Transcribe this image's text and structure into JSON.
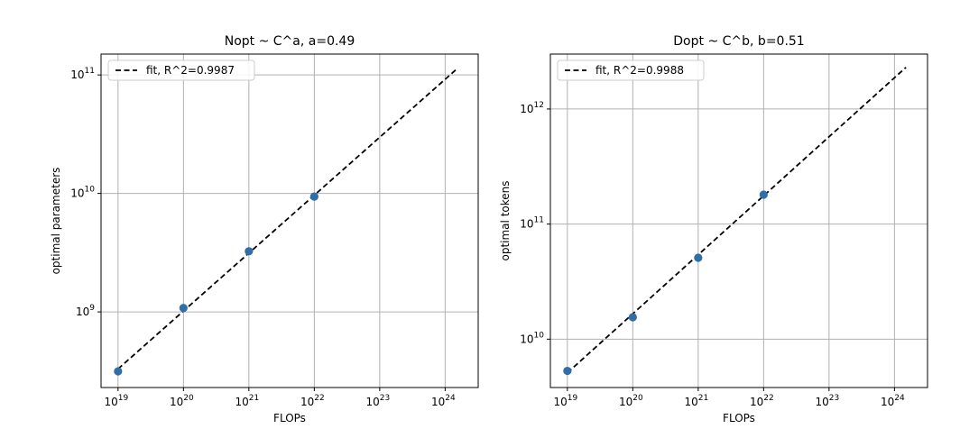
{
  "chart_data": [
    {
      "type": "scatter",
      "title": "Nopt ~ C^a, a=0.49",
      "xlabel": "FLOPs",
      "ylabel": "optimal parameters",
      "x_scale": "log",
      "y_scale": "log",
      "xlim": [
        5.5e+18,
        3.2e+24
      ],
      "ylim": [
        230000000.0,
        150000000000.0
      ],
      "x_ticks": [
        {
          "value": 1e+19,
          "mantissa": "10",
          "exp": "19"
        },
        {
          "value": 1e+20,
          "mantissa": "10",
          "exp": "20"
        },
        {
          "value": 1e+21,
          "mantissa": "10",
          "exp": "21"
        },
        {
          "value": 1e+22,
          "mantissa": "10",
          "exp": "22"
        },
        {
          "value": 1e+23,
          "mantissa": "10",
          "exp": "23"
        },
        {
          "value": 1e+24,
          "mantissa": "10",
          "exp": "24"
        }
      ],
      "y_ticks": [
        {
          "value": 1000000000.0,
          "mantissa": "10",
          "exp": "9"
        },
        {
          "value": 10000000000.0,
          "mantissa": "10",
          "exp": "10"
        },
        {
          "value": 100000000000.0,
          "mantissa": "10",
          "exp": "11"
        }
      ],
      "grid": true,
      "legend": {
        "position": "top-left",
        "entries": [
          "fit, R^2=0.9987"
        ]
      },
      "points": {
        "x": [
          1e+19,
          1e+20,
          1e+21,
          1e+22
        ],
        "y": [
          315000000.0,
          1080000000.0,
          3250000000.0,
          9400000000.0
        ]
      },
      "fit": {
        "x": [
          1e+19,
          1.5e+24
        ],
        "y": [
          330000000.0,
          112000000000.0
        ],
        "style": "dashed"
      },
      "colors": {
        "points": "#2f6ea6",
        "fit": "#000000",
        "grid": "#b0b0b0"
      }
    },
    {
      "type": "scatter",
      "title": "Dopt ~ C^b, b=0.51",
      "xlabel": "FLOPs",
      "ylabel": "optimal tokens",
      "x_scale": "log",
      "y_scale": "log",
      "xlim": [
        5.5e+18,
        3.2e+24
      ],
      "ylim": [
        3800000000.0,
        3000000000000.0
      ],
      "x_ticks": [
        {
          "value": 1e+19,
          "mantissa": "10",
          "exp": "19"
        },
        {
          "value": 1e+20,
          "mantissa": "10",
          "exp": "20"
        },
        {
          "value": 1e+21,
          "mantissa": "10",
          "exp": "21"
        },
        {
          "value": 1e+22,
          "mantissa": "10",
          "exp": "22"
        },
        {
          "value": 1e+23,
          "mantissa": "10",
          "exp": "23"
        },
        {
          "value": 1e+24,
          "mantissa": "10",
          "exp": "24"
        }
      ],
      "y_ticks": [
        {
          "value": 10000000000.0,
          "mantissa": "10",
          "exp": "10"
        },
        {
          "value": 100000000000.0,
          "mantissa": "10",
          "exp": "11"
        },
        {
          "value": 1000000000000.0,
          "mantissa": "10",
          "exp": "12"
        }
      ],
      "grid": true,
      "legend": {
        "position": "top-left",
        "entries": [
          "fit, R^2=0.9988"
        ]
      },
      "points": {
        "x": [
          1e+19,
          1e+20,
          1e+21,
          1e+22
        ],
        "y": [
          5300000000.0,
          15500000000.0,
          51000000000.0,
          180000000000.0
        ]
      },
      "fit": {
        "x": [
          1e+19,
          1.5e+24
        ],
        "y": [
          5100000000.0,
          2300000000000.0
        ],
        "style": "dashed"
      },
      "colors": {
        "points": "#2f6ea6",
        "fit": "#000000",
        "grid": "#b0b0b0"
      }
    }
  ]
}
